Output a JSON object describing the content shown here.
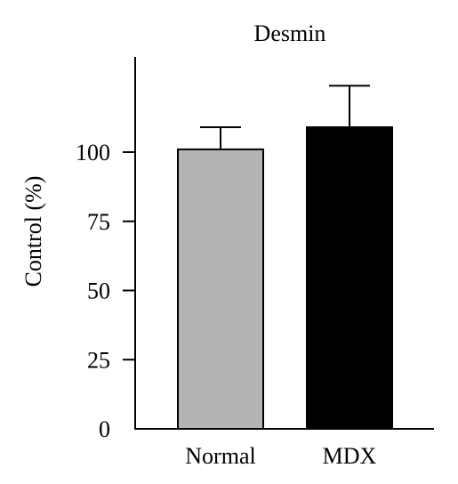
{
  "chart_data": {
    "type": "bar",
    "title": "Desmin",
    "xlabel": "",
    "ylabel": "Control (%)",
    "categories": [
      "Normal",
      "MDX"
    ],
    "values": [
      101,
      109
    ],
    "errors": [
      8,
      15
    ],
    "bar_colors": [
      "#b4b4b4",
      "#000000"
    ],
    "yticks": [
      0,
      25,
      50,
      75,
      100
    ],
    "ylim": [
      0,
      135
    ],
    "grid": false,
    "legend": "none"
  }
}
